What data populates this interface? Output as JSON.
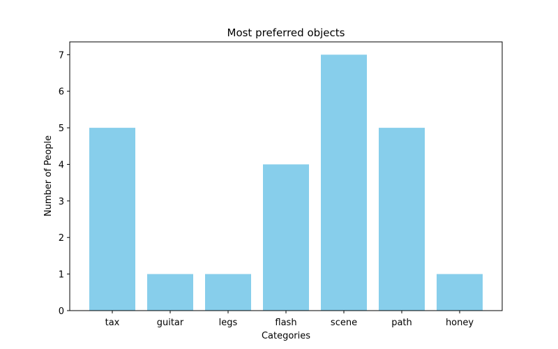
{
  "chart_data": {
    "type": "bar",
    "title": "Most preferred objects",
    "xlabel": "Categories",
    "ylabel": "Number of People",
    "categories": [
      "tax",
      "guitar",
      "legs",
      "flash",
      "scene",
      "path",
      "honey"
    ],
    "values": [
      5,
      1,
      1,
      4,
      7,
      5,
      1
    ],
    "ylim": [
      0,
      7.35
    ],
    "yticks": [
      0,
      1,
      2,
      3,
      4,
      5,
      6,
      7
    ],
    "grid": false,
    "legend": "none",
    "colors": {
      "bar": "#87CEEB",
      "axis": "#000000",
      "background": "#ffffff"
    }
  }
}
